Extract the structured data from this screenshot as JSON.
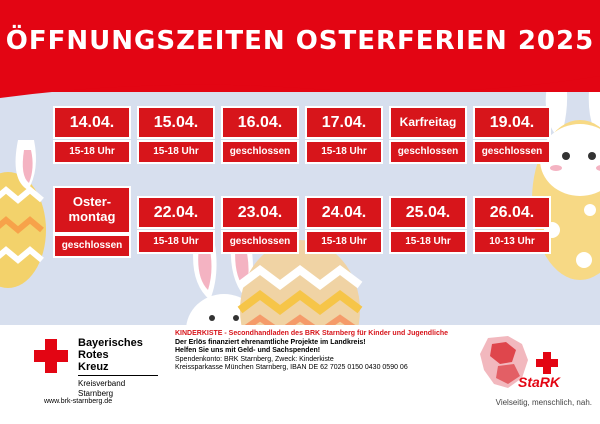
{
  "title": "ÖFFNUNGSZEITEN OSTERFERIEN 2025",
  "colors": {
    "red": "#d7151b",
    "header_red": "#e30513",
    "background": "#d7dfee"
  },
  "rows": [
    [
      {
        "date": "14.04.",
        "hours": "15-18 Uhr"
      },
      {
        "date": "15.04.",
        "hours": "15-18 Uhr"
      },
      {
        "date": "16.04.",
        "hours": "geschlossen"
      },
      {
        "date": "17.04.",
        "hours": "15-18 Uhr"
      },
      {
        "date": "Karfreitag",
        "hours": "geschlossen"
      },
      {
        "date": "19.04.",
        "hours": "geschlossen"
      }
    ],
    [
      {
        "date": "Oster-\nmontag",
        "hours": "geschlossen"
      },
      {
        "date": "22.04.",
        "hours": "15-18 Uhr"
      },
      {
        "date": "23.04.",
        "hours": "geschlossen"
      },
      {
        "date": "24.04.",
        "hours": "15-18 Uhr"
      },
      {
        "date": "25.04.",
        "hours": "15-18 Uhr"
      },
      {
        "date": "26.04.",
        "hours": "10-13 Uhr"
      }
    ]
  ],
  "footer": {
    "org_line1": "Bayerisches",
    "org_line2": "Rotes",
    "org_line3": "Kreuz",
    "sub_line1": "Kreisverband",
    "sub_line2": "Starnberg",
    "url": "www.brk-starnberg.de",
    "headline": "KINDERKISTE - Secondhandladen des BRK Starnberg für Kinder und Jugendliche",
    "line2": "Der Erlös finanziert ehrenamtliche Projekte im Landkreis!",
    "line3": "Helfen Sie uns mit Geld- und Sachspenden!",
    "line4": "Spendenkonto: BRK Starnberg, Zweck: Kinderkiste",
    "line5": "Kreissparkasse München Starnberg, IBAN DE 62 7025 0150 0430 0590 06",
    "stark_word": "StaRK",
    "slogan": "Vielseitig, menschlich, nah."
  },
  "icons": [
    "bunny-illustration",
    "easter-egg-illustration",
    "red-cross-icon",
    "district-map-logo"
  ]
}
